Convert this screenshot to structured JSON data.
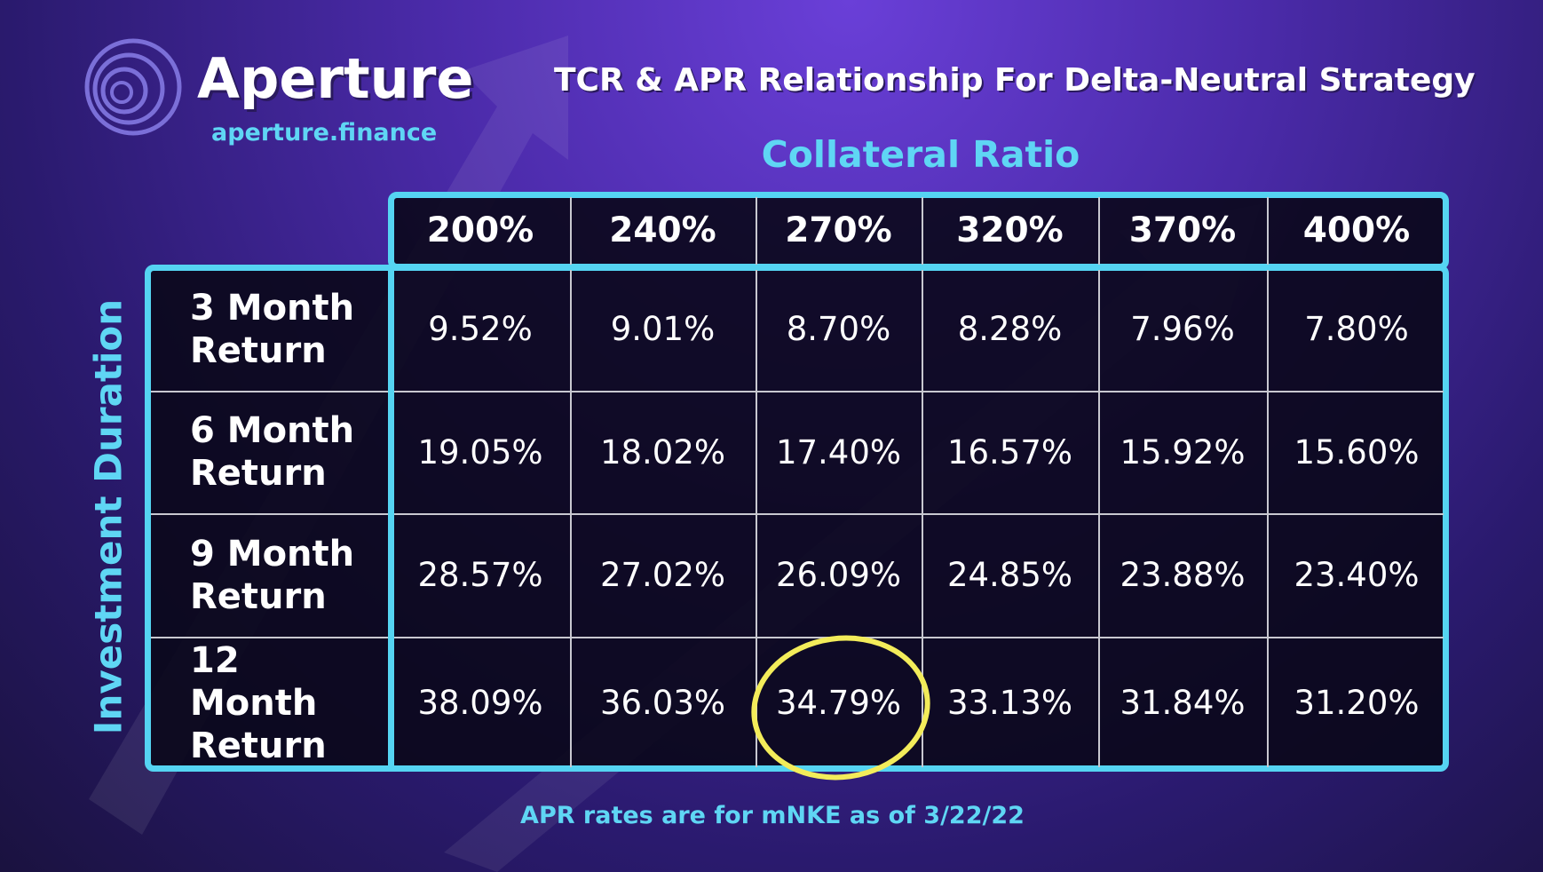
{
  "header": {
    "brand": "Aperture",
    "url": "aperture.finance",
    "title": "TCR & APR Relationship For Delta-Neutral Strategy"
  },
  "table": {
    "column_group": "Collateral Ratio",
    "row_group": "Investment Duration",
    "columns": [
      "200%",
      "240%",
      "270%",
      "320%",
      "370%",
      "400%"
    ],
    "rows": [
      {
        "label": "3 Month Return",
        "cells": [
          "9.52%",
          "9.01%",
          "8.70%",
          "8.28%",
          "7.96%",
          "7.80%"
        ]
      },
      {
        "label": "6 Month Return",
        "cells": [
          "19.05%",
          "18.02%",
          "17.40%",
          "16.57%",
          "15.92%",
          "15.60%"
        ]
      },
      {
        "label": "9 Month Return",
        "cells": [
          "28.57%",
          "27.02%",
          "26.09%",
          "24.85%",
          "23.88%",
          "23.40%"
        ]
      },
      {
        "label": "12 Month Return",
        "cells": [
          "38.09%",
          "36.03%",
          "34.79%",
          "33.13%",
          "31.84%",
          "31.20%"
        ]
      }
    ]
  },
  "footer": {
    "note": "APR rates are for mNKE as of 3/22/22"
  }
}
